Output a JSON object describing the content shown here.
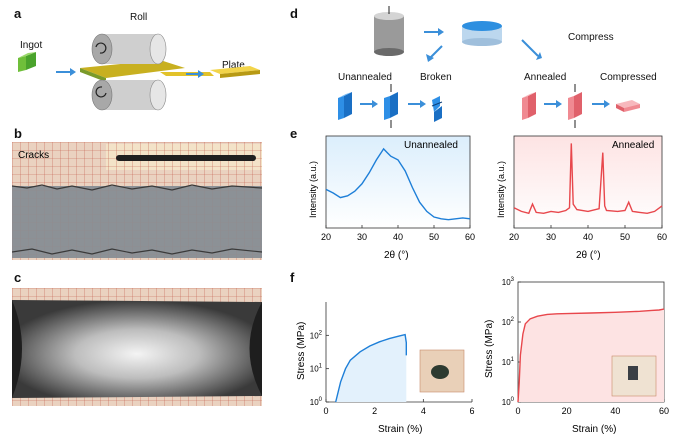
{
  "panels": {
    "a": {
      "label": "a",
      "ingot": "Ingot",
      "roll": "Roll",
      "plate": "Plate"
    },
    "b": {
      "label": "b",
      "cracks": "Cracks"
    },
    "c": {
      "label": "c"
    },
    "d": {
      "label": "d",
      "compress": "Compress",
      "unannealed": "Unannealed",
      "broken": "Broken",
      "annealed": "Annealed",
      "compressed": "Compressed"
    },
    "e": {
      "label": "e",
      "ylabel": "Intensity (a.u.)",
      "xlabel": "2θ (°)",
      "left_title": "Unannealed",
      "right_title": "Annealed"
    },
    "f": {
      "label": "f",
      "ylabel": "Stress (MPa)",
      "xlabel": "Strain (%)"
    }
  },
  "colors": {
    "blue": "#1e7fd8",
    "red": "#e8474c",
    "accent_green": "#6fbf3a",
    "gold": "#e2c22a"
  },
  "chart_data": [
    {
      "type": "line",
      "id": "xrd-unannealed",
      "title": "Unannealed",
      "xlabel": "2θ (°)",
      "ylabel": "Intensity (a.u.)",
      "xlim": [
        20,
        60
      ],
      "xticks": [
        20,
        30,
        40,
        50,
        60
      ],
      "x": [
        20,
        22,
        24,
        26,
        28,
        30,
        32,
        34,
        35,
        36,
        37,
        38,
        40,
        42,
        44,
        46,
        48,
        50,
        52,
        54,
        56,
        58,
        60
      ],
      "y": [
        0.42,
        0.38,
        0.33,
        0.35,
        0.4,
        0.48,
        0.6,
        0.74,
        0.8,
        0.86,
        0.82,
        0.78,
        0.74,
        0.62,
        0.44,
        0.28,
        0.18,
        0.12,
        0.1,
        0.09,
        0.1,
        0.11,
        0.1
      ]
    },
    {
      "type": "line",
      "id": "xrd-annealed",
      "title": "Annealed",
      "xlabel": "2θ (°)",
      "ylabel": "Intensity (a.u.)",
      "xlim": [
        20,
        60
      ],
      "xticks": [
        20,
        30,
        40,
        50,
        60
      ],
      "x": [
        20,
        22,
        24,
        25,
        26,
        28,
        30,
        32,
        34,
        35,
        35.5,
        36,
        37,
        40,
        43,
        44,
        44.5,
        45,
        48,
        50,
        51,
        52,
        54,
        56,
        58,
        60
      ],
      "y": [
        0.22,
        0.18,
        0.16,
        0.26,
        0.17,
        0.16,
        0.18,
        0.17,
        0.19,
        0.22,
        0.92,
        0.26,
        0.2,
        0.18,
        0.21,
        0.82,
        0.24,
        0.19,
        0.18,
        0.19,
        0.28,
        0.18,
        0.17,
        0.16,
        0.18,
        0.24
      ]
    },
    {
      "type": "line",
      "id": "stress-unannealed",
      "xlabel": "Strain (%)",
      "ylabel": "Stress (MPa)",
      "yscale": "log",
      "xlim": [
        0,
        6
      ],
      "xticks": [
        0,
        2,
        4,
        6
      ],
      "ylim": [
        1,
        1000
      ],
      "ytick_labels": [
        "10^0",
        "10^1",
        "10^2"
      ],
      "x": [
        0.4,
        0.6,
        0.8,
        1.0,
        1.4,
        1.8,
        2.2,
        2.6,
        3.0,
        3.25,
        3.3,
        3.3
      ],
      "y": [
        1,
        4,
        10,
        18,
        32,
        48,
        64,
        80,
        95,
        105,
        60,
        25
      ]
    },
    {
      "type": "line",
      "id": "stress-annealed",
      "xlabel": "Strain (%)",
      "ylabel": "Stress (MPa)",
      "yscale": "log",
      "xlim": [
        0,
        60
      ],
      "xticks": [
        0,
        20,
        40,
        60
      ],
      "ylim": [
        1,
        1000
      ],
      "ytick_labels": [
        "10^0",
        "10^1",
        "10^2",
        "10^3"
      ],
      "x": [
        0,
        0.5,
        1,
        2,
        3,
        5,
        8,
        12,
        16,
        20,
        30,
        40,
        45,
        50,
        55,
        58,
        60
      ],
      "y": [
        1,
        3,
        15,
        50,
        90,
        120,
        140,
        155,
        160,
        162,
        168,
        175,
        180,
        185,
        195,
        200,
        210
      ]
    }
  ]
}
